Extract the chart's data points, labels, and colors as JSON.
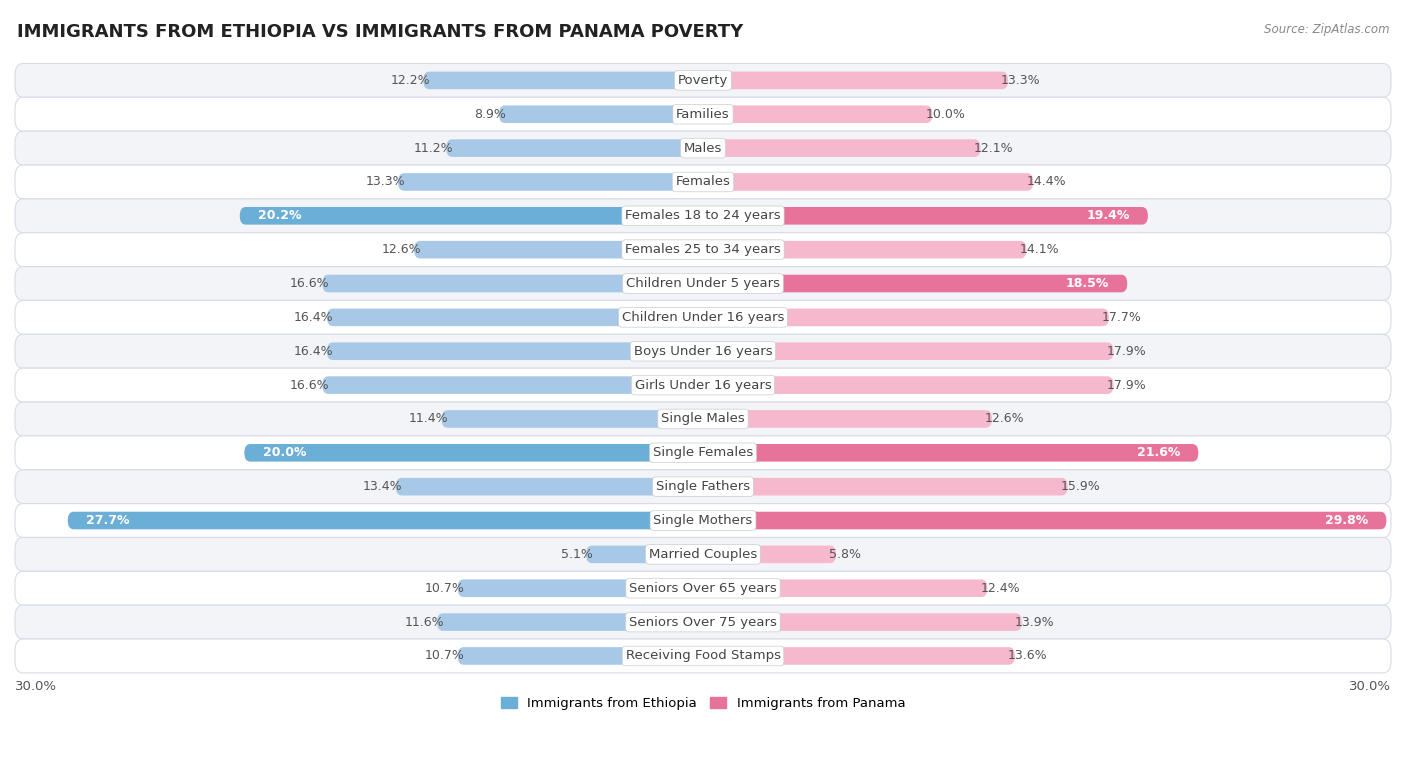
{
  "title": "IMMIGRANTS FROM ETHIOPIA VS IMMIGRANTS FROM PANAMA POVERTY",
  "source": "Source: ZipAtlas.com",
  "categories": [
    "Poverty",
    "Families",
    "Males",
    "Females",
    "Females 18 to 24 years",
    "Females 25 to 34 years",
    "Children Under 5 years",
    "Children Under 16 years",
    "Boys Under 16 years",
    "Girls Under 16 years",
    "Single Males",
    "Single Females",
    "Single Fathers",
    "Single Mothers",
    "Married Couples",
    "Seniors Over 65 years",
    "Seniors Over 75 years",
    "Receiving Food Stamps"
  ],
  "ethiopia_values": [
    12.2,
    8.9,
    11.2,
    13.3,
    20.2,
    12.6,
    16.6,
    16.4,
    16.4,
    16.6,
    11.4,
    20.0,
    13.4,
    27.7,
    5.1,
    10.7,
    11.6,
    10.7
  ],
  "panama_values": [
    13.3,
    10.0,
    12.1,
    14.4,
    19.4,
    14.1,
    18.5,
    17.7,
    17.9,
    17.9,
    12.6,
    21.6,
    15.9,
    29.8,
    5.8,
    12.4,
    13.9,
    13.6
  ],
  "ethiopia_color_normal": "#a8c8e8",
  "ethiopia_color_highlight": "#6baed6",
  "panama_color_normal": "#f5b8cc",
  "panama_color_highlight": "#e8739a",
  "highlight_threshold": 18.0,
  "bg_color": "#ffffff",
  "row_color_odd": "#f2f4f8",
  "row_color_even": "#ffffff",
  "row_border_color": "#d8dce8",
  "max_val": 30.0,
  "bar_height": 0.52,
  "title_fontsize": 13,
  "label_fontsize": 9.5,
  "value_fontsize": 9,
  "legend_label_eth": "Immigrants from Ethiopia",
  "legend_label_pan": "Immigrants from Panama"
}
